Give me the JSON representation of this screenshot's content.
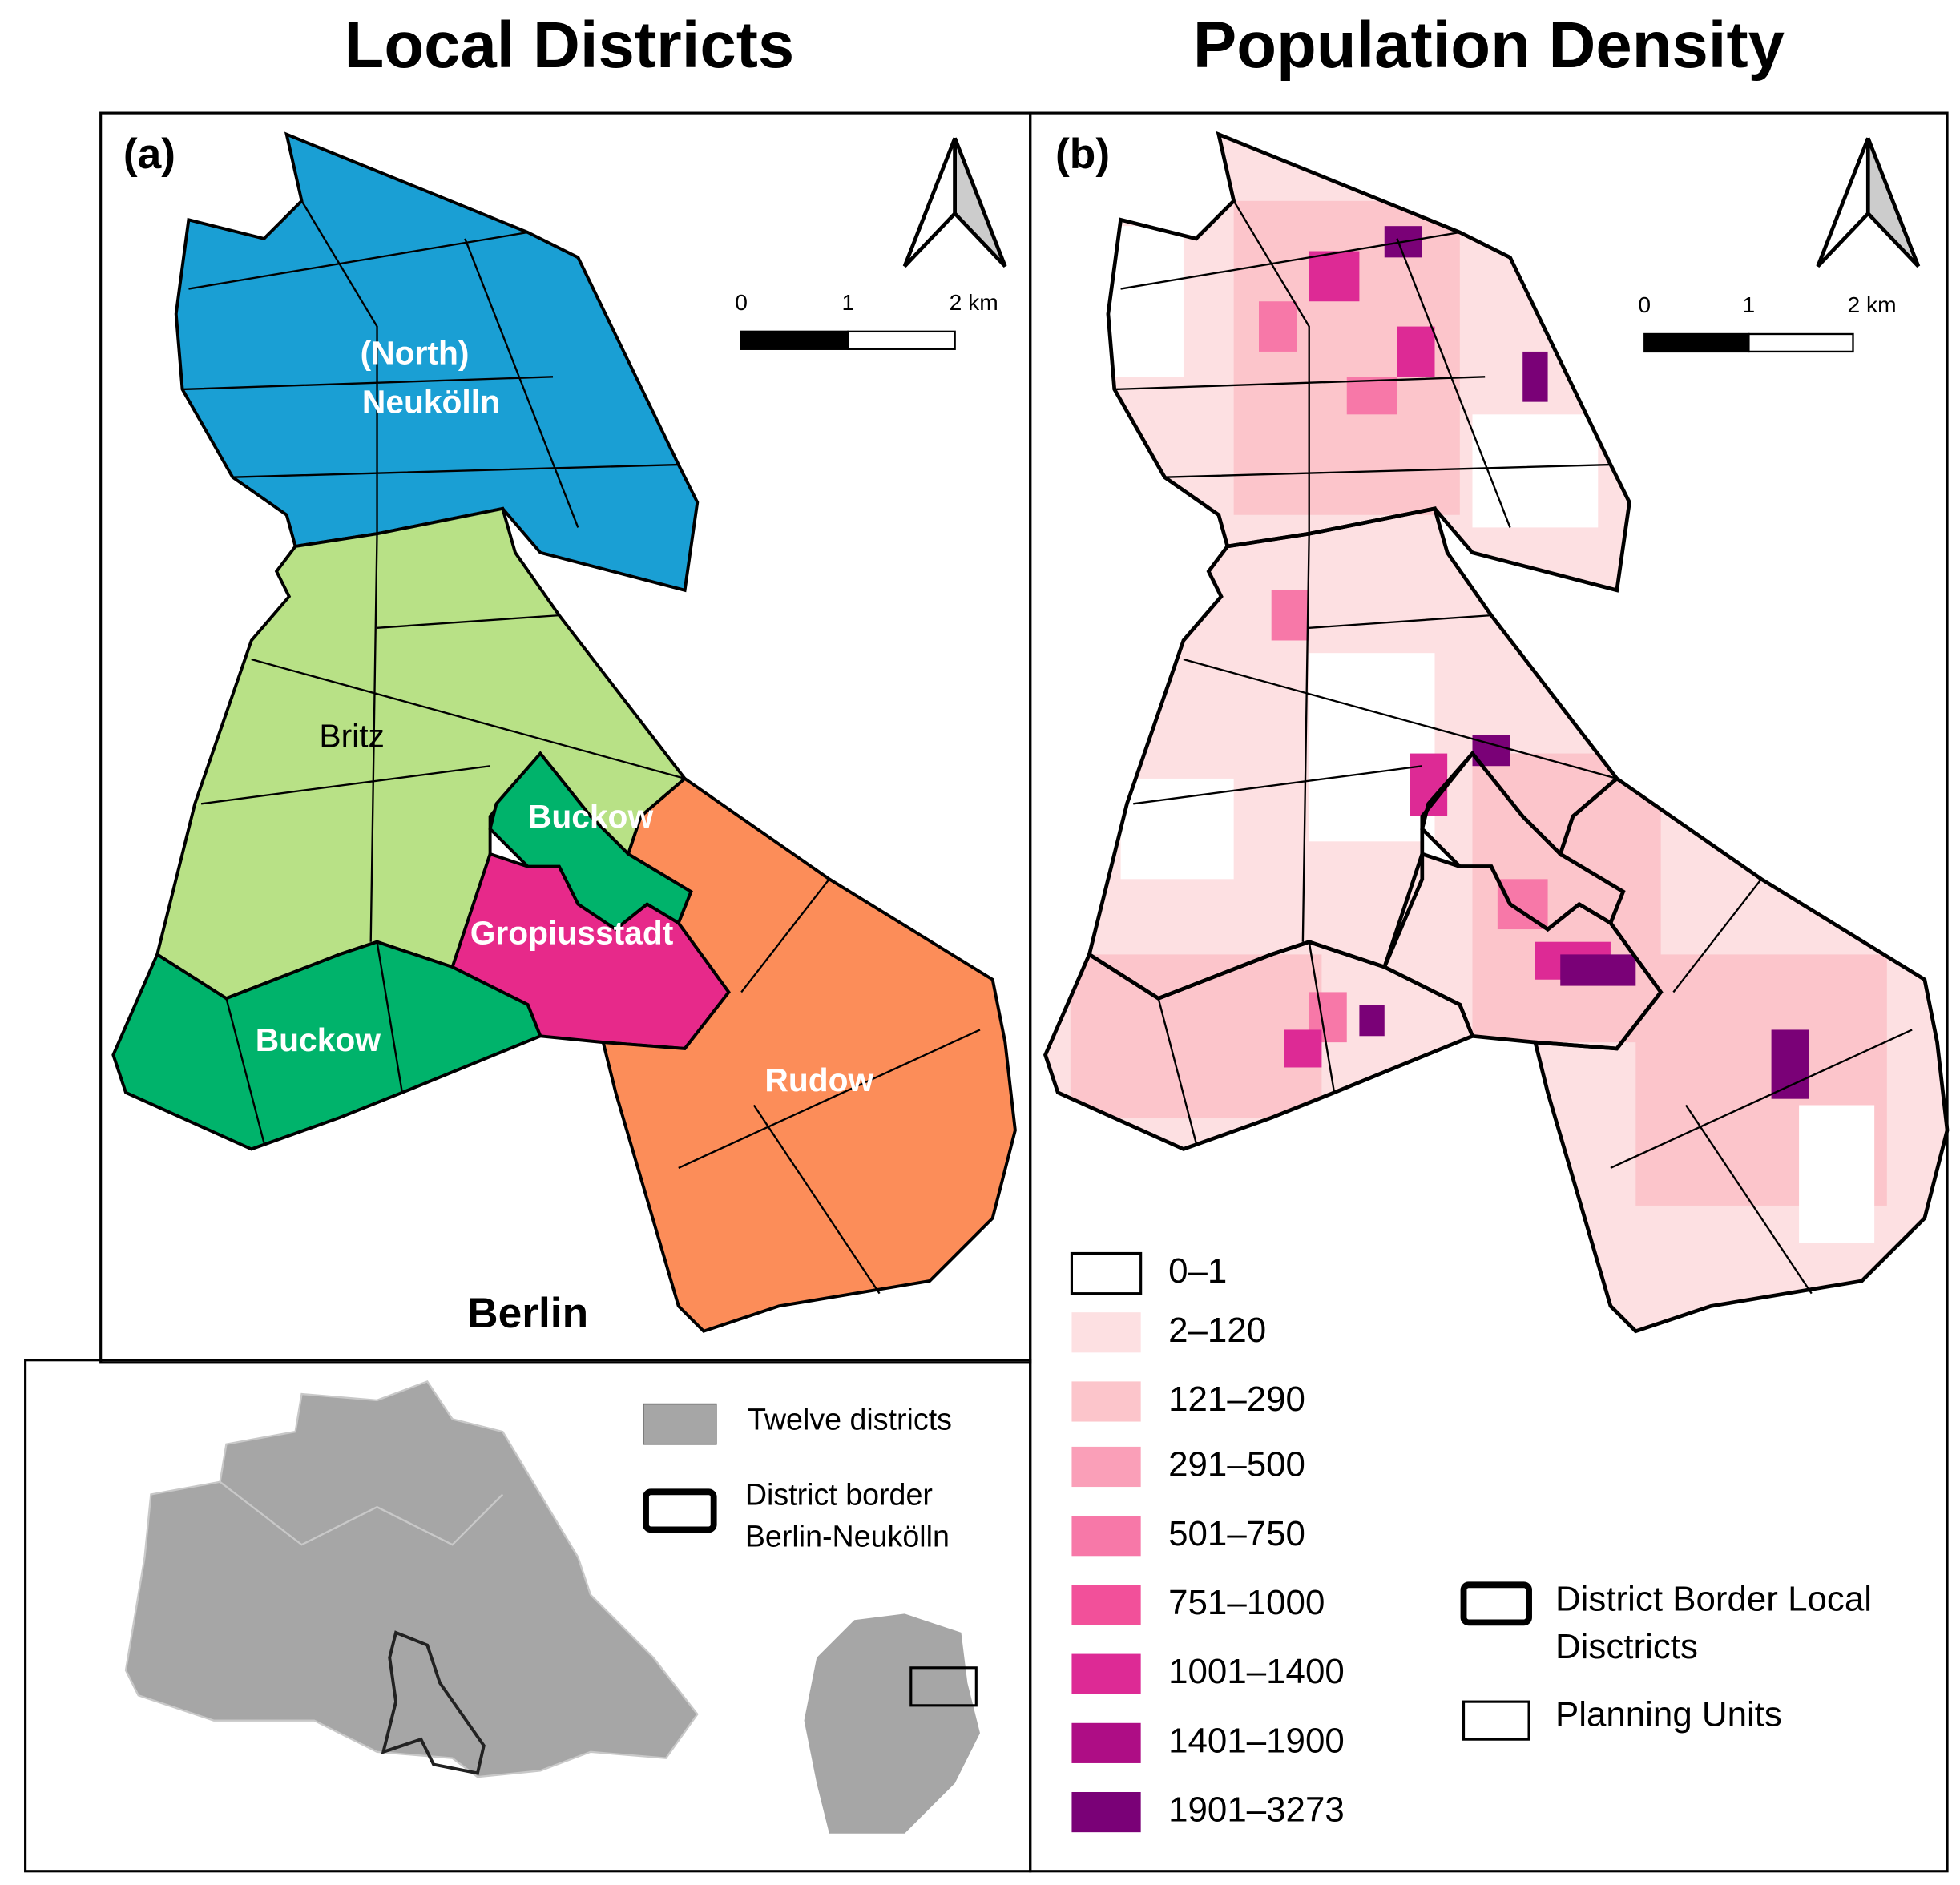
{
  "panels": [
    {
      "title": "Local Districts",
      "label": "(a)",
      "scale": [
        "0",
        "1",
        "2 km"
      ],
      "districts": [
        "(North)",
        "Neukölln",
        "Britz",
        "Buckow",
        "Gropiusstadt",
        "Buckow",
        "Rudow"
      ],
      "city": "Berlin"
    },
    {
      "title": "Population Density",
      "label": "(b)",
      "scale": [
        "0",
        "1",
        "2 km"
      ],
      "legend": [
        {
          "label": "0–1",
          "color": "#ffffff"
        },
        {
          "label": "2–120",
          "color": "#fde0e2"
        },
        {
          "label": "121–290",
          "color": "#fcc5cb"
        },
        {
          "label": "291–500",
          "color": "#fa9fb8"
        },
        {
          "label": "501–750",
          "color": "#f778a8"
        },
        {
          "label": "751–1000",
          "color": "#f2509a"
        },
        {
          "label": "1001–1400",
          "color": "#dd2a95"
        },
        {
          "label": "1401–1900",
          "color": "#ae0d85"
        },
        {
          "label": "1901–3273",
          "color": "#7a0177"
        }
      ],
      "border_legend": [
        "District Border Local",
        "Disctricts",
        "Planning Units"
      ]
    }
  ],
  "inset": {
    "legend": [
      "Twelve districts",
      "District border",
      "Berlin-Neukölln"
    ]
  }
}
